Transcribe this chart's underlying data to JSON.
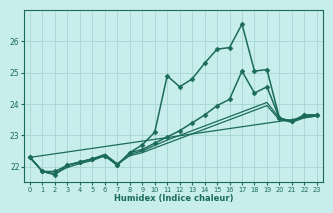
{
  "xlabel": "Humidex (Indice chaleur)",
  "bg_color": "#c8eded",
  "grid_color": "#a8d5d5",
  "line_color": "#1a6b5a",
  "xlim": [
    -0.5,
    23.5
  ],
  "ylim": [
    21.5,
    27.0
  ],
  "yticks": [
    22,
    23,
    24,
    25,
    26
  ],
  "xticks": [
    0,
    1,
    2,
    3,
    4,
    5,
    6,
    7,
    8,
    9,
    10,
    11,
    12,
    13,
    14,
    15,
    16,
    17,
    18,
    19,
    20,
    21,
    22,
    23
  ],
  "series": [
    {
      "comment": "Main volatile line with big peak at x=17",
      "x": [
        0,
        1,
        2,
        3,
        4,
        5,
        6,
        7,
        8,
        9,
        10,
        11,
        12,
        13,
        14,
        15,
        16,
        17,
        18,
        19,
        20,
        21,
        22,
        23
      ],
      "y": [
        22.3,
        21.85,
        21.75,
        22.05,
        22.15,
        22.25,
        22.35,
        22.05,
        22.45,
        22.7,
        23.1,
        24.9,
        24.55,
        24.8,
        25.3,
        25.75,
        25.8,
        26.55,
        25.05,
        25.1,
        23.55,
        23.45,
        23.65,
        23.65
      ],
      "marker": "D",
      "markersize": 2.5,
      "linewidth": 1.1
    },
    {
      "comment": "Smooth curved line - goes up gradually then levels",
      "x": [
        0,
        1,
        2,
        3,
        4,
        5,
        6,
        7,
        8,
        9,
        10,
        11,
        12,
        13,
        14,
        15,
        16,
        17,
        18,
        19,
        20,
        21,
        22,
        23
      ],
      "y": [
        22.3,
        21.85,
        21.85,
        22.05,
        22.15,
        22.25,
        22.35,
        22.05,
        22.45,
        22.55,
        22.75,
        22.95,
        23.15,
        23.4,
        23.65,
        23.95,
        24.15,
        25.05,
        24.35,
        24.55,
        23.55,
        23.45,
        23.65,
        23.65
      ],
      "marker": "D",
      "markersize": 2.5,
      "linewidth": 1.1
    },
    {
      "comment": "Linear line 1 - slow rise from bottom-left to top-right",
      "x": [
        0,
        1,
        2,
        3,
        4,
        5,
        6,
        7,
        8,
        9,
        10,
        11,
        12,
        13,
        14,
        15,
        16,
        17,
        18,
        19,
        20,
        21,
        22,
        23
      ],
      "y": [
        22.3,
        21.85,
        21.75,
        22.05,
        22.15,
        22.25,
        22.4,
        22.1,
        22.4,
        22.5,
        22.68,
        22.85,
        23.0,
        23.15,
        23.3,
        23.45,
        23.6,
        23.75,
        23.9,
        24.05,
        23.55,
        23.45,
        23.6,
        23.65
      ],
      "marker": null,
      "markersize": 0,
      "linewidth": 0.9
    },
    {
      "comment": "Linear line 2 - very gradual slope",
      "x": [
        0,
        1,
        2,
        3,
        4,
        5,
        6,
        7,
        8,
        9,
        10,
        11,
        12,
        13,
        14,
        15,
        16,
        17,
        18,
        19,
        20,
        21,
        22,
        23
      ],
      "y": [
        22.3,
        21.85,
        21.78,
        21.98,
        22.1,
        22.2,
        22.35,
        22.08,
        22.35,
        22.45,
        22.6,
        22.75,
        22.9,
        23.05,
        23.2,
        23.35,
        23.5,
        23.65,
        23.8,
        23.95,
        23.5,
        23.42,
        23.56,
        23.62
      ],
      "marker": null,
      "markersize": 0,
      "linewidth": 0.9
    },
    {
      "comment": "Linear line 3 - nearly flat, lowest",
      "x": [
        0,
        23
      ],
      "y": [
        22.3,
        23.62
      ],
      "marker": null,
      "markersize": 0,
      "linewidth": 0.9
    }
  ]
}
